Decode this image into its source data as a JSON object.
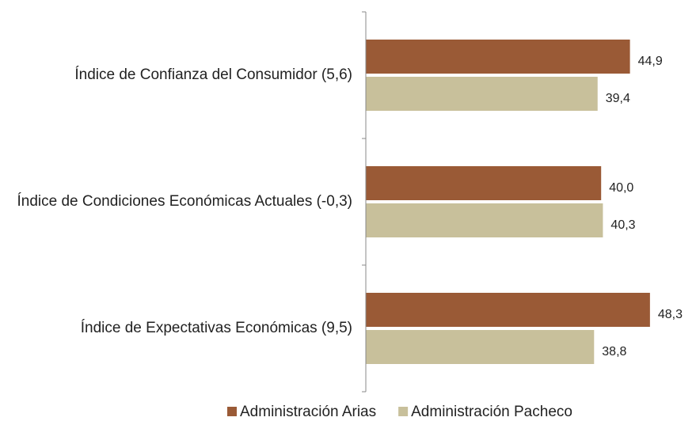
{
  "chart_data": {
    "type": "barh",
    "categories": [
      "Índice de Confianza del Consumidor (5,6)",
      "Índice de Condiciones Económicas Actuales (-0,3)",
      "Índice de Expectativas Económicas (9,5)"
    ],
    "series": [
      {
        "name": "Administración Arias",
        "color": "#9a5a36",
        "values": [
          44.9,
          40.0,
          48.3
        ],
        "value_labels": [
          "44,9",
          "40,0",
          "48,3"
        ]
      },
      {
        "name": "Administración Pacheco",
        "color": "#c8c09b",
        "values": [
          39.4,
          40.3,
          38.8
        ],
        "value_labels": [
          "39,4",
          "40,3",
          "38,8"
        ]
      }
    ],
    "xlim": [
      0,
      55
    ]
  }
}
